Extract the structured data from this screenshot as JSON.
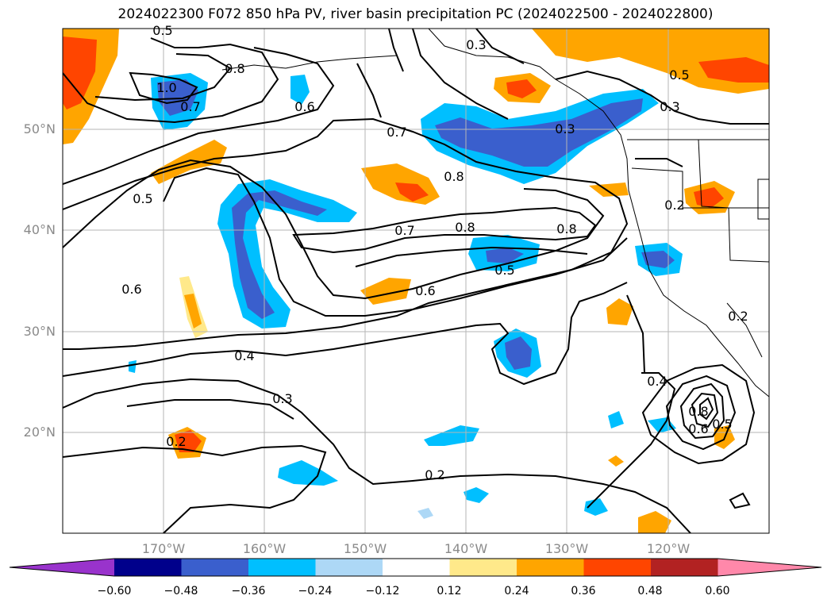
{
  "title": "2024022300 F072 850 hPa PV, river basin precipitation PC (2024022500 - 2024022800)",
  "lat_labels": [
    "50°N",
    "40°N",
    "30°N",
    "20°N"
  ],
  "lon_labels": [
    "170°W",
    "160°W",
    "150°W",
    "140°W",
    "130°W",
    "120°W"
  ],
  "colorbar": {
    "ticks": [
      "−0.60",
      "−0.48",
      "−0.36",
      "−0.24",
      "−0.12",
      "0.12",
      "0.24",
      "0.36",
      "0.48",
      "0.60"
    ],
    "colors": [
      "#9933cc",
      "#00008b",
      "#3a5fcd",
      "#00bfff",
      "#add8f6",
      "#ffffff",
      "#ffe98a",
      "#ffa500",
      "#ff4500",
      "#b22222",
      "#ff88aa"
    ]
  },
  "contour_labels": [
    "0.5",
    "0.8",
    "1.0",
    "0.7",
    "0.6",
    "0.7",
    "0.8",
    "0.3",
    "0.3",
    "0.5",
    "0.3",
    "0.5",
    "0.7",
    "0.8",
    "0.8",
    "0.5",
    "0.6",
    "0.6",
    "0.4",
    "0.3",
    "0.2",
    "0.2",
    "0.4",
    "0.8",
    "0.6",
    "0.5",
    "0.2",
    "0.2"
  ],
  "chart_data": {
    "type": "contour-map",
    "projection": "Plate Carree",
    "lon_range": [
      -180,
      -110
    ],
    "lat_range": [
      10,
      60
    ],
    "gridlines": true,
    "contour_field": "850 hPa PV",
    "fill_field": "river basin precipitation PC",
    "colorbar_placement": "bottom"
  }
}
